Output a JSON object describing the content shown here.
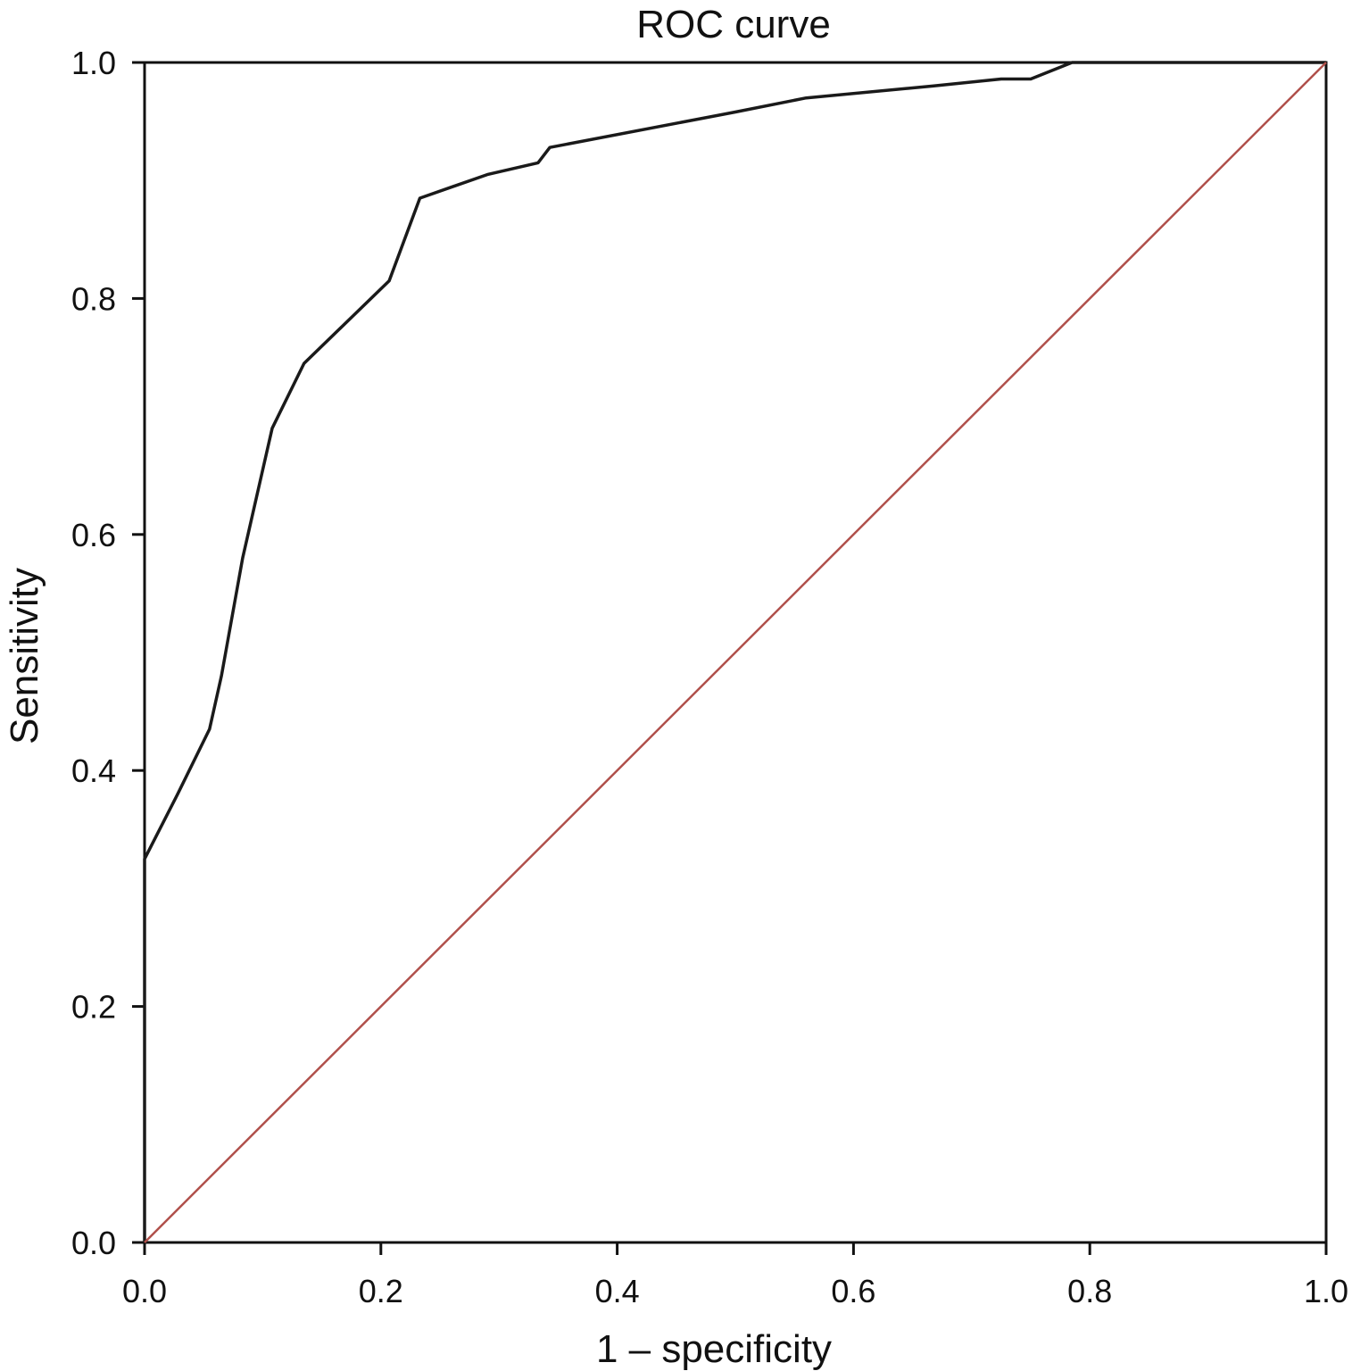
{
  "chart_data": {
    "type": "line",
    "title": "ROC curve",
    "xlabel": "1 – specificity",
    "ylabel": "Sensitivity",
    "xlim": [
      0,
      1
    ],
    "ylim": [
      0,
      1
    ],
    "xticks": [
      "0.0",
      "0.2",
      "0.4",
      "0.6",
      "0.8",
      "1.0"
    ],
    "yticks": [
      "0.0",
      "0.2",
      "0.4",
      "0.6",
      "0.8",
      "1.0"
    ],
    "grid": false,
    "series": [
      {
        "color": "#1a1a1a",
        "points": [
          [
            0.0,
            0.0
          ],
          [
            0.0,
            0.325
          ],
          [
            0.028,
            0.38
          ],
          [
            0.055,
            0.435
          ],
          [
            0.065,
            0.48
          ],
          [
            0.083,
            0.58
          ],
          [
            0.108,
            0.69
          ],
          [
            0.135,
            0.745
          ],
          [
            0.207,
            0.815
          ],
          [
            0.233,
            0.885
          ],
          [
            0.29,
            0.905
          ],
          [
            0.333,
            0.915
          ],
          [
            0.343,
            0.928
          ],
          [
            0.5,
            0.958
          ],
          [
            0.56,
            0.97
          ],
          [
            0.667,
            0.98
          ],
          [
            0.725,
            0.986
          ],
          [
            0.75,
            0.986
          ],
          [
            0.785,
            1.0
          ],
          [
            1.0,
            1.0
          ]
        ]
      },
      {
        "color": "#b0504b",
        "points": [
          [
            0.0,
            0.0
          ],
          [
            1.0,
            1.0
          ]
        ]
      }
    ]
  }
}
